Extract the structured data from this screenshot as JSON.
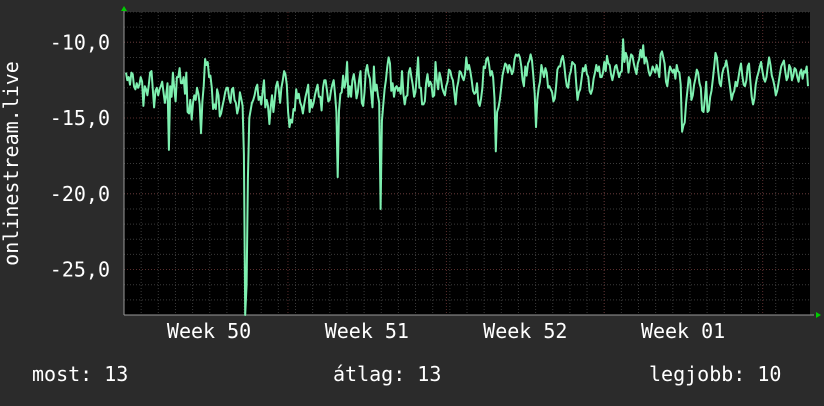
{
  "chart_data": {
    "type": "line",
    "ylabel": "onlinestream.live",
    "yticks": [
      -10,
      -15,
      -20,
      -25
    ],
    "ytick_labels": [
      "-10,0",
      "-15,0",
      "-20,0",
      "-25,0"
    ],
    "ylim": [
      -28,
      -8
    ],
    "xlim": [
      0,
      100
    ],
    "xticks": [
      {
        "label": "Week 50",
        "x": 12.4
      },
      {
        "label": "Week 51",
        "x": 35.4
      },
      {
        "label": "Week 52",
        "x": 58.5
      },
      {
        "label": "Week 01",
        "x": 81.5
      }
    ],
    "grid": true,
    "line_color": "#7ef0b0",
    "series": [
      {
        "values": [
          -12.0,
          -12.5,
          -12.3,
          -12.8,
          -12.0,
          -12.1,
          -12.9,
          -13.1,
          -12.7,
          -13.0,
          -12.8,
          -12.3,
          -12.6,
          -14.2,
          -12.9,
          -13.1,
          -13.5,
          -12.8,
          -12.0,
          -11.9,
          -13.1,
          -14.3,
          -13.2,
          -13.0,
          -13.5,
          -13.1,
          -12.9,
          -12.6,
          -13.3,
          -14.0,
          -13.5,
          -12.7,
          -17.1,
          -12.9,
          -13.6,
          -12.0,
          -13.0,
          -13.9,
          -12.3,
          -12.3,
          -11.7,
          -12.7,
          -12.7,
          -12.3,
          -13.4,
          -12.0,
          -14.6,
          -14.7,
          -13.8,
          -15.1,
          -14.0,
          -13.5,
          -13.8,
          -13.0,
          -13.4,
          -14.1,
          -16.0,
          -13.9,
          -12.9,
          -11.1,
          -11.5,
          -11.3,
          -12.3,
          -12.2,
          -13.0,
          -14.4,
          -14.1,
          -14.4,
          -13.1,
          -13.5,
          -14.9,
          -14.7,
          -14.2,
          -13.8,
          -13.3,
          -13.0,
          -13.0,
          -13.7,
          -14.0,
          -13.1,
          -13.0,
          -13.8,
          -14.0,
          -14.7,
          -14.3,
          -13.3,
          -13.7,
          -14.2,
          -17.4,
          -28.0,
          -26.0,
          -19.0,
          -15.0,
          -14.5,
          -14.0,
          -13.8,
          -13.5,
          -13.0,
          -12.8,
          -13.8,
          -13.6,
          -14.1,
          -13.2,
          -12.5,
          -14.3,
          -13.8,
          -14.2,
          -15.4,
          -14.3,
          -13.5,
          -14.6,
          -13.8,
          -12.9,
          -12.6,
          -13.1,
          -14.0,
          -13.0,
          -12.5,
          -11.9,
          -12.1,
          -12.8,
          -14.6,
          -15.6,
          -15.1,
          -15.3,
          -14.4,
          -14.5,
          -13.1,
          -13.7,
          -13.4,
          -14.0,
          -14.2,
          -14.7,
          -14.1,
          -13.6,
          -13.2,
          -12.8,
          -14.6,
          -13.8,
          -14.3,
          -14.0,
          -13.5,
          -13.1,
          -12.8,
          -13.6,
          -13.6,
          -14.5,
          -13.0,
          -12.5,
          -12.5,
          -13.2,
          -13.9,
          -13.8,
          -13.2,
          -12.8,
          -12.5,
          -13.4,
          -14.6,
          -18.9,
          -14.5,
          -13.4,
          -13.3,
          -12.2,
          -13.0,
          -12.6,
          -11.3,
          -13.6,
          -12.9,
          -13.6,
          -12.5,
          -12.1,
          -12.7,
          -13.7,
          -13.3,
          -12.5,
          -11.9,
          -14.0,
          -14.2,
          -13.3,
          -11.9,
          -11.5,
          -12.1,
          -12.4,
          -13.4,
          -14.3,
          -11.6,
          -13.2,
          -12.8,
          -13.5,
          -14.0,
          -21.0,
          -15.2,
          -14.1,
          -13.1,
          -12.5,
          -11.6,
          -11.0,
          -11.4,
          -13.2,
          -12.7,
          -13.6,
          -13.0,
          -12.9,
          -13.2,
          -13.0,
          -13.4,
          -11.9,
          -13.4,
          -14.1,
          -13.6,
          -13.5,
          -12.0,
          -11.7,
          -12.3,
          -12.8,
          -13.6,
          -13.3,
          -12.2,
          -11.0,
          -13.0,
          -13.0,
          -14.1,
          -14.1,
          -13.9,
          -12.7,
          -12.1,
          -12.9,
          -12.6,
          -12.8,
          -13.6,
          -13.5,
          -11.3,
          -12.5,
          -13.1,
          -12.0,
          -12.4,
          -13.0,
          -13.3,
          -13.5,
          -12.9,
          -12.6,
          -11.8,
          -11.9,
          -12.3,
          -12.5,
          -13.3,
          -14.1,
          -13.0,
          -12.6,
          -11.9,
          -12.0,
          -12.3,
          -12.5,
          -12.1,
          -11.0,
          -11.8,
          -11.5,
          -11.9,
          -12.5,
          -13.2,
          -13.4,
          -13.3,
          -12.7,
          -14.0,
          -14.2,
          -13.7,
          -13.0,
          -11.6,
          -11.7,
          -11.1,
          -11.0,
          -11.5,
          -12.2,
          -11.9,
          -12.3,
          -13.7,
          -17.2,
          -14.6,
          -14.3,
          -13.8,
          -13.0,
          -12.2,
          -11.8,
          -11.4,
          -11.5,
          -12.0,
          -11.5,
          -11.7,
          -12.1,
          -11.9,
          -11.1,
          -10.8,
          -10.9,
          -10.8,
          -11.0,
          -11.6,
          -12.5,
          -12.9,
          -11.6,
          -12.2,
          -11.4,
          -11.2,
          -10.8,
          -11.2,
          -12.2,
          -13.4,
          -15.6,
          -13.8,
          -13.0,
          -12.6,
          -11.5,
          -11.9,
          -12.3,
          -11.7,
          -12.0,
          -13.0,
          -12.9,
          -13.1,
          -13.3,
          -13.9,
          -13.7,
          -12.9,
          -11.8,
          -11.6,
          -11.6,
          -11.1,
          -10.9,
          -11.4,
          -12.3,
          -12.9,
          -13.0,
          -12.2,
          -11.9,
          -11.3,
          -11.4,
          -11.5,
          -12.7,
          -13.8,
          -13.3,
          -13.1,
          -12.4,
          -11.7,
          -11.9,
          -11.5,
          -12.1,
          -12.3,
          -13.2,
          -13.4,
          -13.1,
          -12.4,
          -12.0,
          -11.5,
          -11.9,
          -11.6,
          -12.3,
          -12.3,
          -12.0,
          -11.3,
          -11.9,
          -10.9,
          -11.4,
          -11.5,
          -12.1,
          -12.5,
          -12.1,
          -11.6,
          -11.5,
          -11.9,
          -12.3,
          -12.0,
          -11.9,
          -9.8,
          -11.3,
          -10.7,
          -11.0,
          -12.0,
          -11.3,
          -10.8,
          -10.9,
          -11.4,
          -11.8,
          -12.1,
          -11.4,
          -11.1,
          -10.5,
          -11.0,
          -10.2,
          -11.4,
          -11.0,
          -11.3,
          -11.9,
          -12.2,
          -12.0,
          -11.6,
          -11.8,
          -12.0,
          -11.5,
          -11.8,
          -12.3,
          -10.8,
          -10.6,
          -11.0,
          -11.4,
          -12.6,
          -12.9,
          -12.1,
          -11.6,
          -11.8,
          -12.0,
          -11.8,
          -12.4,
          -11.5,
          -11.9,
          -12.0,
          -12.8,
          -15.9,
          -15.5,
          -15.3,
          -14.0,
          -13.2,
          -12.3,
          -12.5,
          -13.8,
          -13.5,
          -12.8,
          -12.4,
          -11.8,
          -12.0,
          -12.7,
          -13.0,
          -14.5,
          -14.6,
          -13.8,
          -12.6,
          -14.6,
          -14.5,
          -13.6,
          -13.2,
          -12.4,
          -11.6,
          -10.7,
          -11.0,
          -11.9,
          -12.7,
          -12.9,
          -12.1,
          -11.7,
          -11.6,
          -11.2,
          -11.7,
          -12.4,
          -13.1,
          -13.8,
          -13.4,
          -13.2,
          -12.6,
          -12.9,
          -12.4,
          -11.8,
          -11.4,
          -12.2,
          -12.8,
          -12.9,
          -12.5,
          -11.6,
          -11.4,
          -12.6,
          -13.6,
          -14.1,
          -13.7,
          -12.8,
          -12.3,
          -12.0,
          -11.6,
          -11.3,
          -11.9,
          -12.4,
          -12.6,
          -12.3,
          -11.6,
          -11.0,
          -11.5,
          -12.2,
          -12.5,
          -12.9,
          -13.5,
          -13.2,
          -12.7,
          -12.1,
          -11.6,
          -11.4,
          -11.2,
          -11.9,
          -12.5,
          -12.3,
          -11.5,
          -11.7,
          -12.5,
          -12.2,
          -11.7,
          -11.8,
          -12.3,
          -12.6,
          -12.0,
          -11.8,
          -12.4,
          -11.9,
          -12.0,
          -11.6,
          -12.9
        ]
      }
    ]
  },
  "stats": {
    "current": "most: 13",
    "average": "átlag: 13",
    "best": "legjobb: 10"
  },
  "colors": {
    "background": "#2b2b2b",
    "plot_background": "#000000",
    "grid_minor": "#3a3a3a",
    "grid_major": "#5a2e2e",
    "arrow": "#00cc00"
  }
}
